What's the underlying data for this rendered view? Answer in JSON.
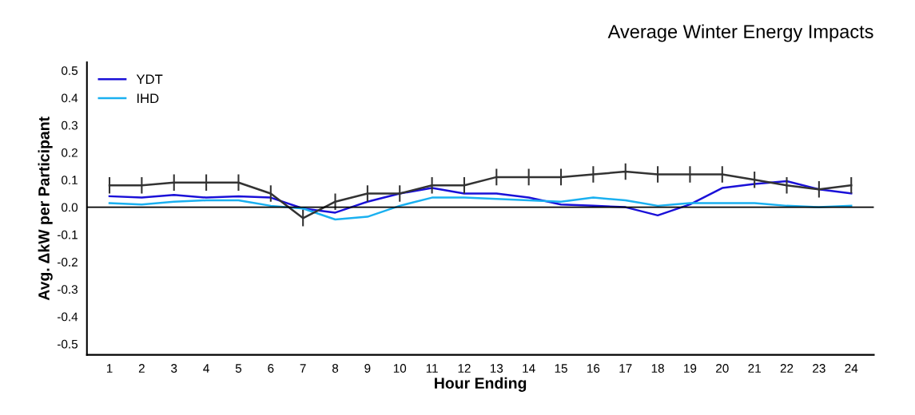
{
  "chart_data": {
    "type": "line",
    "title": "Average Winter Energy Impacts",
    "xlabel": "Hour Ending",
    "ylabel": "Avg. ΔkW per Participant",
    "categories": [
      "1",
      "2",
      "3",
      "4",
      "5",
      "6",
      "7",
      "8",
      "9",
      "10",
      "11",
      "12",
      "13",
      "14",
      "15",
      "16",
      "17",
      "18",
      "19",
      "20",
      "21",
      "22",
      "23",
      "24"
    ],
    "ylim": [
      -0.54,
      0.53
    ],
    "yticks": [
      {
        "value": -0.5,
        "label": "-0.5"
      },
      {
        "value": -0.4,
        "label": "-0.4"
      },
      {
        "value": -0.3,
        "label": "-0.3"
      },
      {
        "value": -0.2,
        "label": "-0.2"
      },
      {
        "value": -0.1,
        "label": "-0.1"
      },
      {
        "value": 0,
        "label": "0.0"
      },
      {
        "value": 0.1,
        "label": "0.1"
      },
      {
        "value": 0.2,
        "label": "0.2"
      },
      {
        "value": 0.3,
        "label": "0.3"
      },
      {
        "value": 0.4,
        "label": "0.4"
      },
      {
        "value": 0.5,
        "label": "0.5"
      }
    ],
    "ref_lines": [
      {
        "axis": "y",
        "value": 0,
        "color": "#000000"
      }
    ],
    "legend": "top left",
    "grid": false,
    "series": [
      {
        "name": "YDT",
        "color": "#1a10d8",
        "values": [
          0.04,
          0.035,
          0.045,
          0.035,
          0.04,
          0.035,
          -0.005,
          -0.02,
          0.02,
          0.05,
          0.07,
          0.05,
          0.05,
          0.035,
          0.01,
          0.005,
          0,
          -0.03,
          0.01,
          0.07,
          0.085,
          0.095,
          0.065,
          0.05
        ]
      },
      {
        "name": "IHD",
        "color": "#1ab0f0",
        "values": [
          0.015,
          0.01,
          0.02,
          0.025,
          0.025,
          0.005,
          -0.005,
          -0.045,
          -0.035,
          0.005,
          0.035,
          0.035,
          0.03,
          0.025,
          0.02,
          0.035,
          0.025,
          0.005,
          0.015,
          0.015,
          0.015,
          0.005,
          0,
          0.005
        ]
      },
      {
        "color": "#333333",
        "values": [
          0.08,
          0.08,
          0.09,
          0.09,
          0.09,
          0.05,
          -0.04,
          0.02,
          0.05,
          0.05,
          0.08,
          0.08,
          0.11,
          0.11,
          0.11,
          0.12,
          0.13,
          0.12,
          0.12,
          0.12,
          0.1,
          0.08,
          0.065,
          0.08
        ],
        "errors": [
          0.03,
          0.03,
          0.03,
          0.03,
          0.03,
          0.03,
          0.03,
          0.03,
          0.03,
          0.03,
          0.03,
          0.03,
          0.03,
          0.03,
          0.03,
          0.03,
          0.03,
          0.03,
          0.03,
          0.03,
          0.03,
          0.03,
          0.03,
          0.03
        ]
      }
    ]
  }
}
